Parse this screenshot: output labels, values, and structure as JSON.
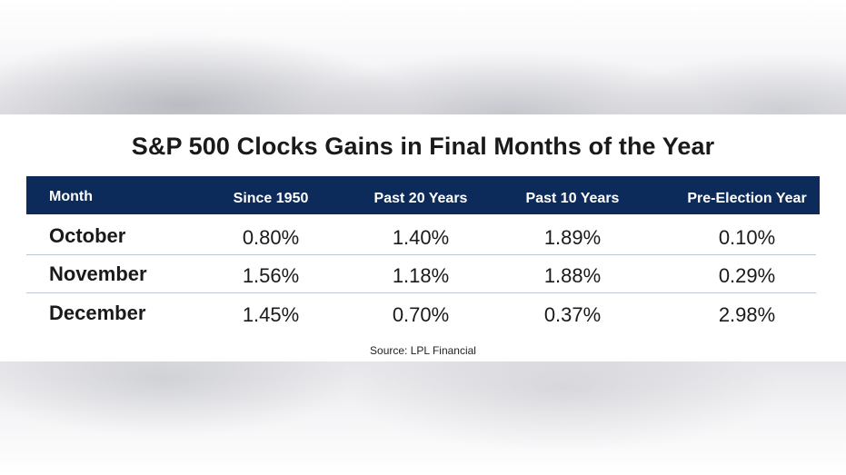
{
  "title": "S&P 500 Clocks Gains in Final Months of the Year",
  "source": "Source: LPL Financial",
  "colors": {
    "header_bg": "#0c2b5b",
    "divider": "#b9c7d9",
    "text": "#1a1a1a"
  },
  "chart_data": {
    "type": "table",
    "title": "S&P 500 Clocks Gains in Final Months of the Year",
    "columns": [
      "Month",
      "Since 1950",
      "Past 20 Years",
      "Past 10 Years",
      "Pre-Election Year"
    ],
    "rows": [
      {
        "month": "October",
        "values": [
          "0.80%",
          "1.40%",
          "1.89%",
          "0.10%"
        ]
      },
      {
        "month": "November",
        "values": [
          "1.56%",
          "1.18%",
          "1.88%",
          "0.29%"
        ]
      },
      {
        "month": "December",
        "values": [
          "1.45%",
          "0.70%",
          "0.37%",
          "2.98%"
        ]
      }
    ]
  }
}
